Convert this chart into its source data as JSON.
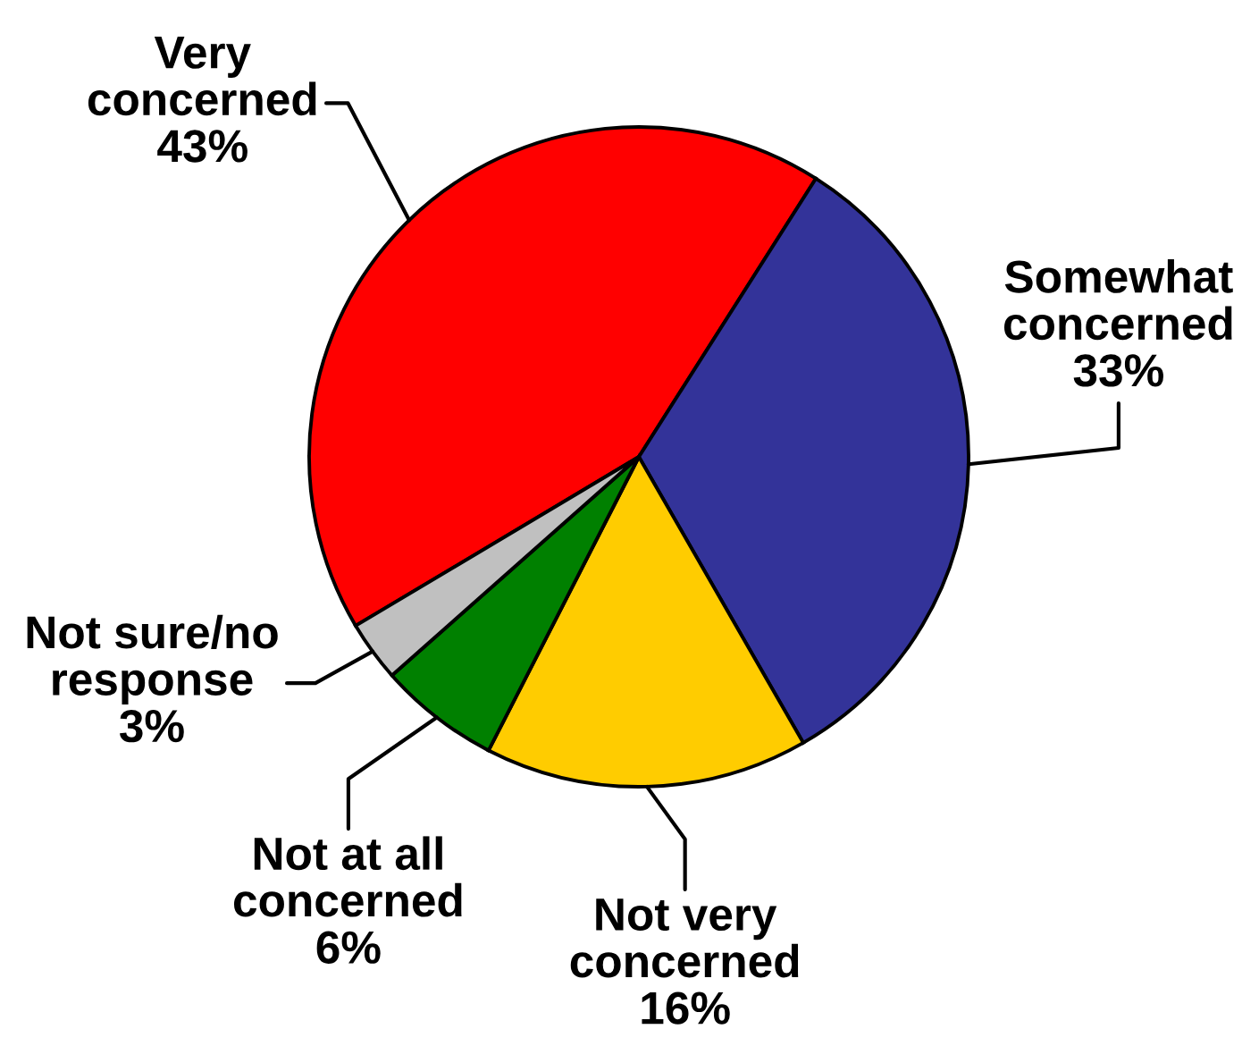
{
  "chart_data": {
    "type": "pie",
    "categories": [
      "Very concerned",
      "Somewhat concerned",
      "Not very concerned",
      "Not at all concerned",
      "Not sure/no response"
    ],
    "values": [
      43,
      33,
      16,
      6,
      3
    ],
    "colors": [
      "#ff0000",
      "#333399",
      "#ffcc00",
      "#008000",
      "#c0c0c0"
    ],
    "value_labels": [
      "43%",
      "33%",
      "16%",
      "6%",
      "3%"
    ]
  }
}
